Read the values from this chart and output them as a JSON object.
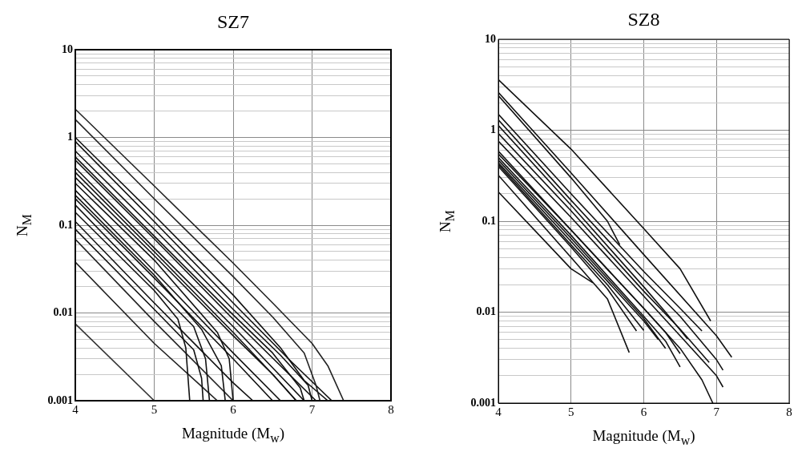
{
  "chart_data": [
    {
      "type": "line",
      "title": "SZ7",
      "xlabel": "Magnitude (M$_{w}$)",
      "ylabel": "N$_{M}$",
      "log": "y",
      "grid": true,
      "marker": "none",
      "line_style": "solid",
      "xlim": [
        4,
        8
      ],
      "xticks": [
        4,
        5,
        6,
        7,
        8
      ],
      "ylim": [
        0.001,
        10
      ],
      "yticks": [
        0.001,
        {
          "value": 0.002,
          "label": null
        },
        {
          "value": 0.003,
          "label": null
        },
        {
          "value": 0.004,
          "label": null
        },
        {
          "value": 0.005,
          "label": null
        },
        {
          "value": 0.006,
          "label": null
        },
        {
          "value": 0.007,
          "label": null
        },
        {
          "value": 0.008,
          "label": null
        },
        {
          "value": 0.009,
          "label": null
        },
        0.01,
        {
          "value": 0.02,
          "label": null
        },
        {
          "value": 0.03,
          "label": null
        },
        {
          "value": 0.04,
          "label": null
        },
        {
          "value": 0.05,
          "label": null
        },
        {
          "value": 0.06,
          "label": null
        },
        {
          "value": 0.07,
          "label": null
        },
        {
          "value": 0.08,
          "label": null
        },
        {
          "value": 0.09,
          "label": null
        },
        0.1,
        {
          "value": 0.2,
          "label": null
        },
        {
          "value": 0.3,
          "label": null
        },
        {
          "value": 0.4,
          "label": null
        },
        {
          "value": 0.5,
          "label": null
        },
        {
          "value": 0.6,
          "label": null
        },
        {
          "value": 0.7,
          "label": null
        },
        {
          "value": 0.8,
          "label": null
        },
        {
          "value": 0.9,
          "label": null
        },
        1,
        {
          "value": 2,
          "label": null
        },
        {
          "value": 3,
          "label": null
        },
        {
          "value": 4,
          "label": null
        },
        {
          "value": 5,
          "label": null
        },
        {
          "value": 6,
          "label": null
        },
        {
          "value": 7,
          "label": null
        },
        {
          "value": 8,
          "label": null
        },
        {
          "value": 9,
          "label": null
        },
        10
      ],
      "series": [
        {
          "color": "#222222",
          "x": [
            4,
            5,
            6,
            6.5,
            7,
            7.2,
            7.4
          ],
          "values": [
            2.1,
            0.28,
            0.037,
            0.013,
            0.0045,
            0.0025,
            0.001
          ]
        },
        {
          "color": "#222222",
          "x": [
            4,
            5,
            6,
            6.5,
            6.9,
            7.05,
            7.1
          ],
          "values": [
            1.6,
            0.2,
            0.026,
            0.009,
            0.0035,
            0.0015,
            0.001
          ]
        },
        {
          "color": "#111111",
          "x": [
            4,
            5,
            6,
            6.6,
            6.9,
            7.2
          ],
          "values": [
            1,
            0.13,
            0.016,
            0.004,
            0.0017,
            0.001
          ]
        },
        {
          "color": "#111111",
          "x": [
            4,
            5,
            6,
            6.7,
            7.25
          ],
          "values": [
            0.9,
            0.11,
            0.013,
            0.003,
            0.001
          ]
        },
        {
          "color": "#111111",
          "x": [
            4,
            5,
            6,
            6.6,
            6.95,
            7
          ],
          "values": [
            0.7,
            0.09,
            0.011,
            0.0033,
            0.0015,
            0.001
          ]
        },
        {
          "color": "#111111",
          "x": [
            4,
            5,
            6,
            6.5,
            6.85,
            6.9
          ],
          "values": [
            0.6,
            0.075,
            0.0095,
            0.0035,
            0.0014,
            0.001
          ]
        },
        {
          "color": "#111111",
          "x": [
            4,
            5,
            6,
            7.05
          ],
          "values": [
            0.55,
            0.07,
            0.0085,
            0.001
          ]
        },
        {
          "color": "#111111",
          "x": [
            4,
            5,
            6,
            6.9
          ],
          "values": [
            0.45,
            0.055,
            0.007,
            0.001
          ]
        },
        {
          "color": "#111111",
          "x": [
            4,
            5,
            6,
            6.5,
            6.8
          ],
          "values": [
            0.4,
            0.05,
            0.006,
            0.002,
            0.001
          ]
        },
        {
          "color": "#111111",
          "x": [
            4,
            5,
            6,
            6.5,
            6.8
          ],
          "values": [
            0.35,
            0.045,
            0.0055,
            0.002,
            0.001
          ]
        },
        {
          "color": "#111111",
          "x": [
            4,
            5,
            5.8,
            5.95,
            6
          ],
          "values": [
            0.3,
            0.04,
            0.006,
            0.003,
            0.001
          ]
        },
        {
          "color": "#111111",
          "x": [
            4,
            5,
            6,
            6.6
          ],
          "values": [
            0.25,
            0.03,
            0.0035,
            0.001
          ]
        },
        {
          "color": "#111111",
          "x": [
            4,
            5,
            5.6,
            5.85,
            5.9
          ],
          "values": [
            0.22,
            0.027,
            0.0065,
            0.0025,
            0.001
          ]
        },
        {
          "color": "#111111",
          "x": [
            4,
            5,
            6,
            6.5
          ],
          "values": [
            0.2,
            0.025,
            0.003,
            0.001
          ]
        },
        {
          "color": "#111111",
          "x": [
            4,
            5,
            5.5,
            5.65,
            5.7
          ],
          "values": [
            0.17,
            0.02,
            0.007,
            0.003,
            0.001
          ]
        },
        {
          "color": "#111111",
          "x": [
            4,
            5,
            5.3,
            5.4,
            5.45
          ],
          "values": [
            0.14,
            0.018,
            0.0085,
            0.004,
            0.001
          ]
        },
        {
          "color": "#111111",
          "x": [
            4,
            5,
            6,
            6.25
          ],
          "values": [
            0.11,
            0.013,
            0.0016,
            0.001
          ]
        },
        {
          "color": "#111111",
          "x": [
            4,
            5,
            5.5,
            5.6,
            5.62
          ],
          "values": [
            0.09,
            0.011,
            0.0038,
            0.0018,
            0.001
          ]
        },
        {
          "color": "#222222",
          "x": [
            4,
            5,
            6
          ],
          "values": [
            0.069,
            0.008,
            0.001
          ]
        },
        {
          "color": "#222222",
          "x": [
            4,
            5,
            5.8
          ],
          "values": [
            0.038,
            0.0045,
            0.001
          ]
        },
        {
          "color": "#333333",
          "x": [
            4,
            5
          ],
          "values": [
            0.0075,
            0.001
          ]
        }
      ]
    },
    {
      "type": "line",
      "title": "SZ8",
      "xlabel": "Magnitude (M$_{w}$)",
      "ylabel": "N$_{M}$",
      "log": "y",
      "grid": true,
      "marker": "none",
      "line_style": "solid",
      "xlim": [
        4,
        8
      ],
      "xticks": [
        4,
        5,
        6,
        7,
        8
      ],
      "ylim": [
        0.001,
        10
      ],
      "yticks": [
        0.001,
        {
          "value": 0.002,
          "label": null
        },
        {
          "value": 0.003,
          "label": null
        },
        {
          "value": 0.004,
          "label": null
        },
        {
          "value": 0.005,
          "label": null
        },
        {
          "value": 0.006,
          "label": null
        },
        {
          "value": 0.007,
          "label": null
        },
        {
          "value": 0.008,
          "label": null
        },
        {
          "value": 0.009,
          "label": null
        },
        0.01,
        {
          "value": 0.02,
          "label": null
        },
        {
          "value": 0.03,
          "label": null
        },
        {
          "value": 0.04,
          "label": null
        },
        {
          "value": 0.05,
          "label": null
        },
        {
          "value": 0.06,
          "label": null
        },
        {
          "value": 0.07,
          "label": null
        },
        {
          "value": 0.08,
          "label": null
        },
        {
          "value": 0.09,
          "label": null
        },
        0.1,
        {
          "value": 0.2,
          "label": null
        },
        {
          "value": 0.3,
          "label": null
        },
        {
          "value": 0.4,
          "label": null
        },
        {
          "value": 0.5,
          "label": null
        },
        {
          "value": 0.6,
          "label": null
        },
        {
          "value": 0.7,
          "label": null
        },
        {
          "value": 0.8,
          "label": null
        },
        {
          "value": 0.9,
          "label": null
        },
        1,
        {
          "value": 2,
          "label": null
        },
        {
          "value": 3,
          "label": null
        },
        {
          "value": 4,
          "label": null
        },
        {
          "value": 5,
          "label": null
        },
        {
          "value": 6,
          "label": null
        },
        {
          "value": 7,
          "label": null
        },
        {
          "value": 8,
          "label": null
        },
        {
          "value": 9,
          "label": null
        },
        10
      ],
      "series": [
        {
          "color": "#111111",
          "x": [
            4,
            5,
            6,
            6.5,
            6.92
          ],
          "values": [
            3.6,
            0.62,
            0.083,
            0.03,
            0.008
          ]
        },
        {
          "color": "#111111",
          "x": [
            4,
            5,
            6,
            7,
            7.21
          ],
          "values": [
            2.6,
            0.34,
            0.043,
            0.0055,
            0.0032
          ]
        },
        {
          "color": "#111111",
          "x": [
            4,
            5,
            5.5,
            5.67
          ],
          "values": [
            2.4,
            0.3,
            0.1,
            0.055
          ]
        },
        {
          "color": "#111111",
          "x": [
            4,
            5,
            6,
            6.5,
            6.8
          ],
          "values": [
            1.5,
            0.2,
            0.028,
            0.011,
            0.0062
          ]
        },
        {
          "color": "#111111",
          "x": [
            4,
            5,
            6,
            6.5,
            7,
            7.09
          ],
          "values": [
            1.3,
            0.17,
            0.023,
            0.009,
            0.003,
            0.0023
          ]
        },
        {
          "color": "#111111",
          "x": [
            4,
            5,
            6,
            6.3,
            6.6
          ],
          "values": [
            1.13,
            0.15,
            0.019,
            0.01,
            0.0051
          ]
        },
        {
          "color": "#111111",
          "x": [
            4,
            5,
            6,
            6.5,
            6.9
          ],
          "values": [
            0.92,
            0.13,
            0.017,
            0.0065,
            0.0028
          ]
        },
        {
          "color": "#111111",
          "x": [
            4,
            5,
            6,
            6.5,
            7,
            7.09
          ],
          "values": [
            0.76,
            0.11,
            0.015,
            0.0055,
            0.002,
            0.0015
          ]
        },
        {
          "color": "#111111",
          "x": [
            4,
            5,
            6,
            6.3,
            6.5
          ],
          "values": [
            0.59,
            0.08,
            0.011,
            0.006,
            0.0035
          ]
        },
        {
          "color": "#111111",
          "x": [
            4,
            5,
            6,
            6.5,
            6.8,
            6.95
          ],
          "values": [
            0.55,
            0.08,
            0.011,
            0.004,
            0.0018,
            0.001
          ]
        },
        {
          "color": "#111111",
          "x": [
            4,
            5,
            6,
            6.3,
            6.5
          ],
          "values": [
            0.5,
            0.07,
            0.009,
            0.0048,
            0.0025
          ]
        },
        {
          "color": "#111111",
          "x": [
            4,
            5,
            6,
            6.3
          ],
          "values": [
            0.47,
            0.065,
            0.0085,
            0.004
          ]
        },
        {
          "color": "#111111",
          "x": [
            4,
            5,
            6,
            6.2
          ],
          "values": [
            0.44,
            0.06,
            0.008,
            0.005
          ]
        },
        {
          "color": "#111111",
          "x": [
            4,
            5,
            5.5,
            6
          ],
          "values": [
            0.42,
            0.055,
            0.02,
            0.0063
          ]
        },
        {
          "color": "#111111",
          "x": [
            4,
            5,
            5.5,
            5.9
          ],
          "values": [
            0.4,
            0.052,
            0.018,
            0.0062
          ]
        },
        {
          "color": "#111111",
          "x": [
            4,
            5,
            5.5,
            5.8
          ],
          "values": [
            0.32,
            0.04,
            0.014,
            0.0036
          ]
        },
        {
          "color": "#111111",
          "x": [
            4,
            5,
            5.3
          ],
          "values": [
            0.21,
            0.03,
            0.021
          ]
        }
      ]
    }
  ]
}
